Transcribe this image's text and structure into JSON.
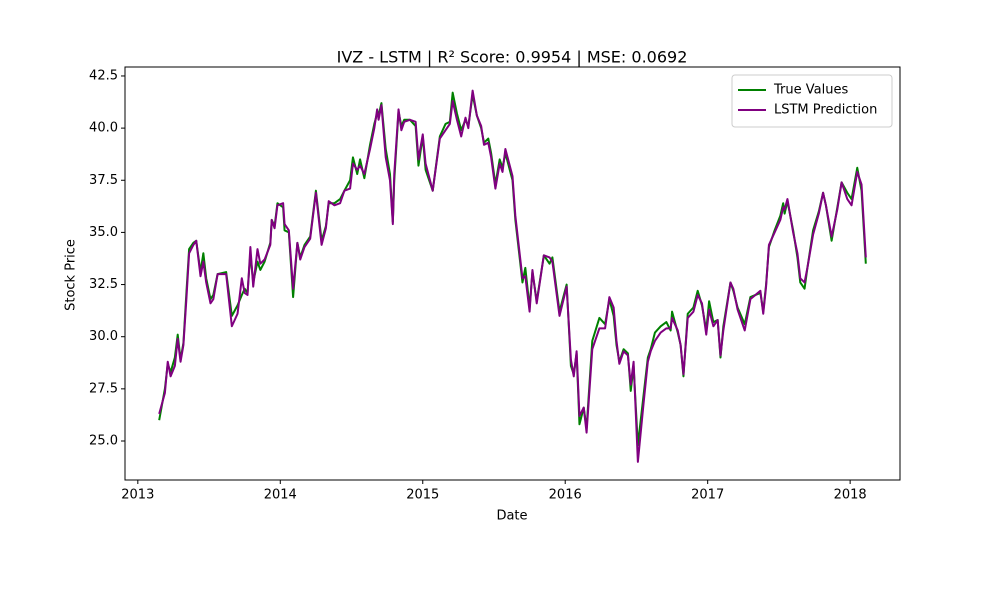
{
  "chart_data": {
    "type": "line",
    "title": "IVZ - LSTM | R² Score: 0.9954 | MSE: 0.0692",
    "xlabel": "Date",
    "ylabel": "Stock Price",
    "x": [
      2013.15,
      2013.19,
      2013.21,
      2013.23,
      2013.26,
      2013.28,
      2013.3,
      2013.32,
      2013.34,
      2013.36,
      2013.39,
      2013.41,
      2013.44,
      2013.46,
      2013.48,
      2013.51,
      2013.53,
      2013.56,
      2013.62,
      2013.66,
      2013.7,
      2013.73,
      2013.75,
      2013.77,
      2013.79,
      2013.81,
      2013.84,
      2013.86,
      2013.89,
      2013.93,
      2013.94,
      2013.96,
      2013.98,
      2014.02,
      2014.03,
      2014.06,
      2014.09,
      2014.12,
      2014.14,
      2014.17,
      2014.21,
      2014.25,
      2014.29,
      2014.32,
      2014.34,
      2014.38,
      2014.42,
      2014.45,
      2014.49,
      2014.51,
      2014.54,
      2014.56,
      2014.59,
      2014.63,
      2014.66,
      2014.68,
      2014.69,
      2014.71,
      2014.74,
      2014.77,
      2014.79,
      2014.8,
      2014.83,
      2014.85,
      2014.87,
      2014.91,
      2014.95,
      2014.97,
      2015.0,
      2015.02,
      2015.07,
      2015.12,
      2015.16,
      2015.19,
      2015.21,
      2015.24,
      2015.27,
      2015.3,
      2015.32,
      2015.35,
      2015.38,
      2015.41,
      2015.43,
      2015.46,
      2015.48,
      2015.51,
      2015.54,
      2015.56,
      2015.58,
      2015.63,
      2015.65,
      2015.7,
      2015.72,
      2015.75,
      2015.77,
      2015.8,
      2015.85,
      2015.89,
      2015.91,
      2015.96,
      2016.01,
      2016.04,
      2016.06,
      2016.08,
      2016.1,
      2016.13,
      2016.15,
      2016.19,
      2016.24,
      2016.28,
      2016.31,
      2016.34,
      2016.36,
      2016.38,
      2016.41,
      2016.44,
      2016.46,
      2016.48,
      2016.51,
      2016.55,
      2016.58,
      2016.6,
      2016.63,
      2016.67,
      2016.71,
      2016.74,
      2016.75,
      2016.79,
      2016.81,
      2016.83,
      2016.86,
      2016.9,
      2016.93,
      2016.96,
      2016.99,
      2017.01,
      2017.04,
      2017.07,
      2017.09,
      2017.11,
      2017.16,
      2017.18,
      2017.21,
      2017.26,
      2017.3,
      2017.37,
      2017.39,
      2017.41,
      2017.43,
      2017.47,
      2017.51,
      2017.53,
      2017.54,
      2017.56,
      2017.6,
      2017.63,
      2017.65,
      2017.68,
      2017.7,
      2017.74,
      2017.78,
      2017.81,
      2017.83,
      2017.87,
      2017.91,
      2017.94,
      2017.98,
      2018.01,
      2018.05,
      2018.08,
      2018.11
    ],
    "series": [
      {
        "name": "True Values",
        "color": "#008000",
        "values": [
          26.0,
          27.5,
          28.7,
          28.3,
          29.0,
          30.1,
          28.9,
          29.7,
          32.0,
          34.2,
          34.5,
          34.6,
          33.1,
          34.0,
          32.8,
          31.8,
          32.0,
          33.0,
          33.1,
          31.0,
          31.5,
          32.0,
          32.3,
          32.1,
          34.0,
          32.6,
          33.6,
          33.2,
          33.6,
          34.5,
          35.6,
          35.3,
          36.4,
          36.2,
          35.1,
          35.0,
          31.9,
          34.5,
          33.8,
          34.4,
          34.8,
          37.0,
          34.6,
          35.3,
          36.4,
          36.4,
          36.6,
          37.0,
          37.5,
          38.6,
          37.8,
          38.5,
          37.6,
          39.2,
          40.2,
          40.7,
          40.6,
          41.2,
          39.0,
          37.8,
          35.5,
          37.5,
          40.8,
          40.1,
          40.4,
          40.4,
          40.1,
          38.2,
          39.6,
          38.0,
          37.0,
          39.6,
          40.2,
          40.3,
          41.7,
          40.7,
          39.9,
          40.4,
          40.1,
          41.6,
          40.6,
          40.0,
          39.3,
          39.5,
          38.8,
          37.3,
          38.5,
          38.1,
          38.8,
          37.5,
          35.6,
          32.6,
          33.3,
          31.4,
          33.1,
          31.7,
          33.9,
          33.5,
          33.8,
          31.2,
          32.5,
          28.6,
          28.2,
          29.2,
          25.8,
          26.6,
          25.6,
          29.8,
          30.9,
          30.6,
          31.8,
          31.0,
          29.6,
          28.8,
          29.4,
          29.2,
          27.4,
          28.6,
          24.8,
          27.2,
          29.0,
          29.4,
          30.2,
          30.5,
          30.7,
          30.3,
          31.2,
          30.2,
          29.6,
          28.1,
          31.1,
          31.4,
          32.2,
          31.5,
          30.3,
          31.7,
          30.7,
          30.8,
          29.0,
          30.5,
          32.6,
          32.2,
          31.4,
          30.6,
          31.9,
          32.1,
          31.2,
          32.5,
          34.3,
          35.1,
          35.8,
          36.4,
          35.9,
          36.5,
          35.1,
          33.8,
          32.6,
          32.3,
          33.3,
          35.1,
          36.0,
          36.9,
          36.3,
          34.6,
          36.2,
          37.4,
          36.9,
          36.6,
          38.1,
          37.0,
          33.5
        ]
      },
      {
        "name": "LSTM Prediction",
        "color": "#800080",
        "values": [
          26.3,
          27.3,
          28.8,
          28.1,
          28.6,
          29.9,
          28.8,
          29.6,
          31.7,
          34.0,
          34.4,
          34.6,
          32.9,
          33.6,
          32.6,
          31.6,
          31.8,
          33.0,
          33.0,
          30.5,
          31.1,
          32.8,
          32.1,
          32.0,
          34.3,
          32.4,
          34.2,
          33.5,
          33.7,
          34.4,
          35.6,
          35.2,
          36.3,
          36.4,
          35.4,
          35.1,
          32.3,
          34.5,
          33.7,
          34.3,
          34.7,
          36.9,
          34.4,
          35.2,
          36.5,
          36.3,
          36.4,
          37.0,
          37.1,
          38.3,
          38.0,
          38.2,
          37.8,
          39.0,
          40.0,
          40.9,
          40.4,
          41.1,
          38.6,
          37.5,
          35.4,
          37.8,
          40.9,
          39.9,
          40.3,
          40.4,
          40.3,
          38.5,
          39.7,
          38.3,
          37.0,
          39.5,
          39.9,
          40.2,
          41.3,
          40.4,
          39.6,
          40.5,
          40.0,
          41.8,
          40.6,
          40.1,
          39.2,
          39.3,
          38.6,
          37.1,
          38.3,
          37.9,
          39.0,
          37.7,
          35.8,
          32.8,
          32.9,
          31.2,
          33.2,
          31.6,
          33.9,
          33.8,
          33.6,
          31.0,
          32.4,
          28.9,
          28.1,
          29.3,
          26.2,
          26.6,
          25.4,
          29.4,
          30.4,
          30.4,
          31.9,
          31.4,
          29.8,
          28.7,
          29.3,
          29.1,
          27.7,
          28.8,
          24.0,
          26.8,
          28.8,
          29.3,
          29.8,
          30.2,
          30.4,
          30.4,
          30.9,
          30.3,
          29.6,
          28.2,
          30.9,
          31.2,
          32.0,
          31.6,
          30.1,
          31.3,
          30.5,
          30.8,
          29.1,
          30.3,
          32.6,
          32.3,
          31.3,
          30.3,
          31.8,
          32.2,
          31.1,
          32.4,
          34.4,
          35.0,
          35.6,
          36.2,
          36.1,
          36.6,
          35.0,
          34.0,
          32.8,
          32.6,
          33.3,
          34.9,
          35.9,
          36.9,
          36.3,
          34.8,
          36.1,
          37.4,
          36.6,
          36.3,
          37.9,
          37.3,
          33.8
        ]
      }
    ],
    "xlim": [
      2012.91,
      2018.35
    ],
    "xticks": [
      2013,
      2014,
      2015,
      2016,
      2017,
      2018
    ],
    "ylim": [
      23.13,
      42.93
    ],
    "yticks": [
      {
        "value": 25,
        "label": "25.0"
      },
      {
        "value": 27.5,
        "label": "27.5"
      },
      {
        "value": 30,
        "label": "30.0"
      },
      {
        "value": 32.5,
        "label": "32.5"
      },
      {
        "value": 35,
        "label": "35.0"
      },
      {
        "value": 37.5,
        "label": "37.5"
      },
      {
        "value": 40,
        "label": "40.0"
      },
      {
        "value": 42.5,
        "label": "42.5"
      }
    ],
    "legend": "upper right"
  }
}
